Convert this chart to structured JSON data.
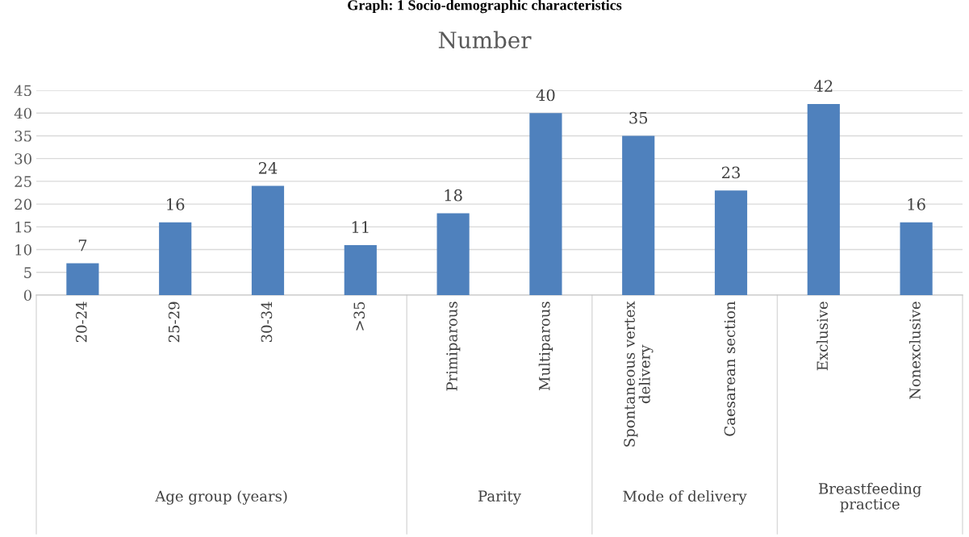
{
  "chart_data": {
    "type": "bar",
    "title": "Graph: 1 Socio-demographic characteristics",
    "subtitle": "Number",
    "categories": [
      "20-24",
      "25-29",
      "30-34",
      ">35",
      "Primiparous",
      "Multiparous",
      "Spontaneous vertex\ndelivery",
      "Caesarean section",
      "Exclusive",
      "Nonexclusive"
    ],
    "values": [
      7,
      16,
      24,
      11,
      18,
      40,
      35,
      23,
      42,
      16
    ],
    "color": "#4f81bd",
    "ylim": [
      0,
      45
    ],
    "yticks": [
      0,
      5,
      10,
      15,
      20,
      25,
      30,
      35,
      40,
      45
    ],
    "grid": "y",
    "data_labels": true,
    "annotations": [
      "Age group (years)",
      "Parity",
      "Mode of delivery",
      "Breastfeeding\npractice"
    ]
  }
}
